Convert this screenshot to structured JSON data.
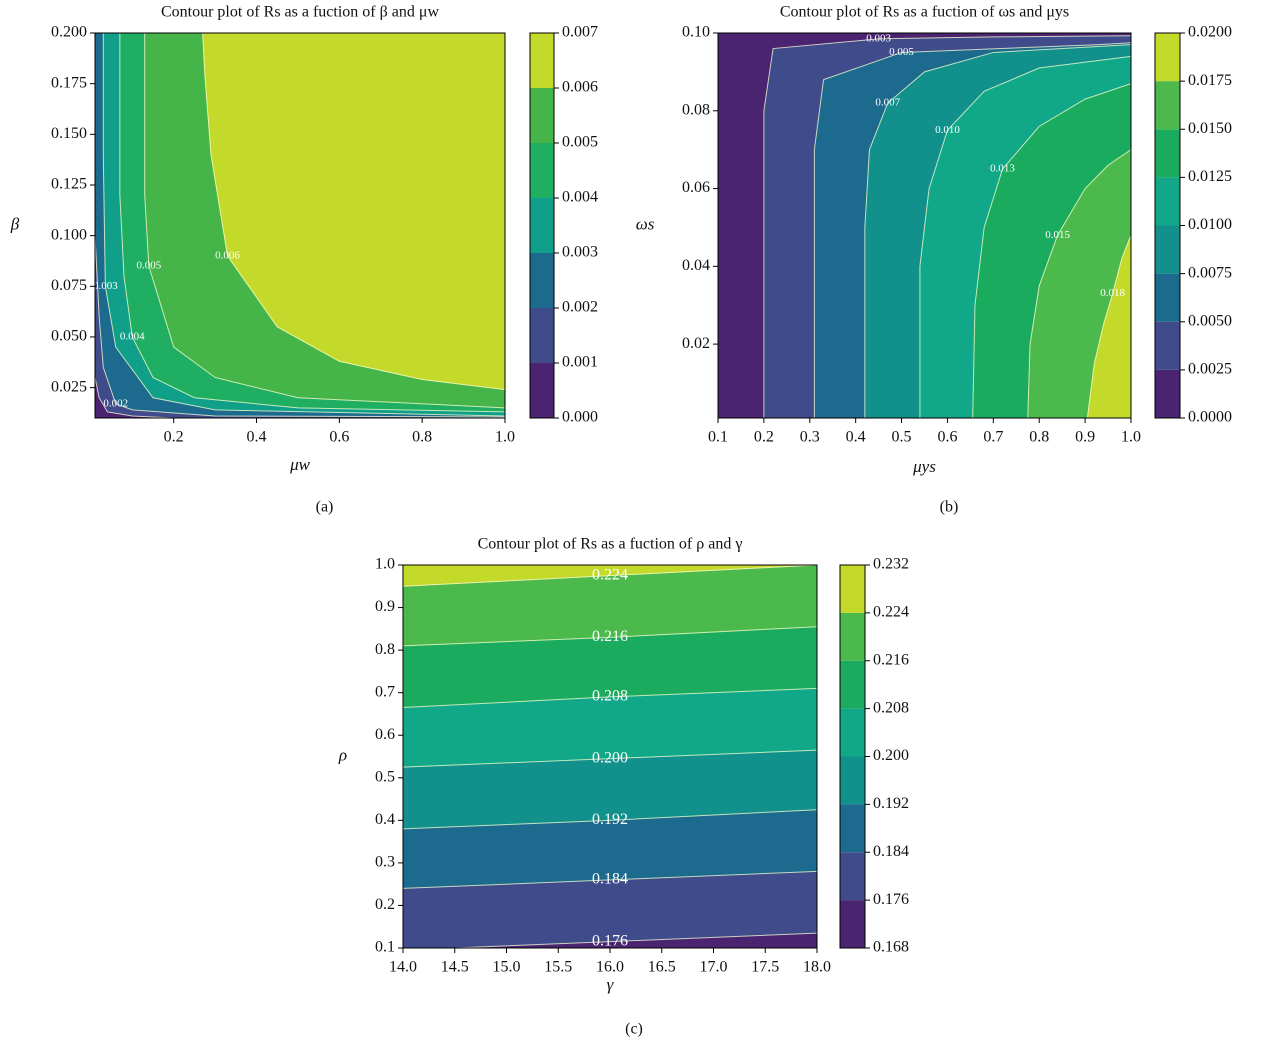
{
  "chart_data": [
    {
      "type": "contour",
      "title": "Contour plot of Rs as a fuction of β and μw",
      "xlabel": "μw",
      "ylabel": "β",
      "panel_label": "(a)",
      "xlim": [
        0.01,
        1.0
      ],
      "ylim": [
        0.01,
        0.2
      ],
      "xticks": [
        0.2,
        0.4,
        0.6,
        0.8,
        {
          "value": 1.0,
          "label": "1.0"
        }
      ],
      "yticks": [
        0.025,
        {
          "value": 0.05,
          "label": "0.050"
        },
        0.075,
        {
          "value": 0.1,
          "label": "0.100"
        },
        0.125,
        {
          "value": 0.15,
          "label": "0.150"
        },
        0.175,
        {
          "value": 0.2,
          "label": "0.200"
        }
      ],
      "levels": [
        {
          "value": 0,
          "label": "0.000"
        },
        0.001,
        0.002,
        0.003,
        0.004,
        0.005,
        0.006,
        0.007
      ],
      "colors": [
        "#4a2470",
        "#3f4b8b",
        "#1c6a8d",
        "#10a08a",
        "#1fae62",
        "#45b54a",
        "#c4da2a"
      ],
      "contours": [
        {
          "level": 0.001,
          "x": [
            0.2,
            0.1,
            0.04,
            0.02,
            0.01
          ],
          "y": [
            0.01,
            0.011,
            0.013,
            0.02,
            0.03
          ]
        },
        {
          "level": 0.002,
          "label": "0.002",
          "x": [
            1.0,
            0.3,
            0.1,
            0.06,
            0.03,
            0.02,
            0.01
          ],
          "y": [
            0.0105,
            0.011,
            0.014,
            0.017,
            0.035,
            0.06,
            0.1
          ]
        },
        {
          "level": 0.003,
          "label": "0.003",
          "x": [
            1.0,
            0.3,
            0.15,
            0.06,
            0.035,
            0.033,
            0.03,
            0.03
          ],
          "y": [
            0.011,
            0.014,
            0.02,
            0.045,
            0.075,
            0.1,
            0.14,
            0.2
          ]
        },
        {
          "level": 0.004,
          "label": "0.004",
          "x": [
            1.0,
            0.5,
            0.25,
            0.15,
            0.1,
            0.08,
            0.07,
            0.07
          ],
          "y": [
            0.013,
            0.015,
            0.02,
            0.03,
            0.05,
            0.08,
            0.12,
            0.2
          ]
        },
        {
          "level": 0.005,
          "label": "0.005",
          "x": [
            1.0,
            0.5,
            0.3,
            0.2,
            0.14,
            0.13,
            0.13,
            0.13
          ],
          "y": [
            0.015,
            0.02,
            0.03,
            0.045,
            0.085,
            0.12,
            0.16,
            0.2
          ]
        },
        {
          "level": 0.006,
          "label": "0.006",
          "x": [
            1.0,
            0.8,
            0.6,
            0.45,
            0.33,
            0.29,
            0.275,
            0.27
          ],
          "y": [
            0.024,
            0.029,
            0.038,
            0.055,
            0.09,
            0.14,
            0.18,
            0.2
          ]
        }
      ]
    },
    {
      "type": "contour",
      "title": "Contour plot of Rs as a fuction of ωs and μys",
      "xlabel": "μys",
      "ylabel": "ωs",
      "panel_label": "(b)",
      "xlim": [
        0.1,
        1.0
      ],
      "ylim": [
        0.001,
        0.1
      ],
      "xticks": [
        0.1,
        0.2,
        0.3,
        0.4,
        0.5,
        0.6,
        0.7,
        0.8,
        0.9,
        {
          "value": 1.0,
          "label": "1.0"
        }
      ],
      "yticks": [
        0.02,
        0.04,
        0.06,
        0.08,
        {
          "value": 0.1,
          "label": "0.10"
        }
      ],
      "levels": [
        {
          "value": 0,
          "label": "0.0000"
        },
        0.0025,
        {
          "value": 0.005,
          "label": "0.0050"
        },
        0.0075,
        {
          "value": 0.01,
          "label": "0.0100"
        },
        0.0125,
        {
          "value": 0.015,
          "label": "0.0150"
        },
        0.0175,
        {
          "value": 0.02,
          "label": "0.0200"
        }
      ],
      "colors": [
        "#4a2470",
        "#3f4b8b",
        "#1c6a8d",
        "#12918c",
        "#10a889",
        "#1bab5f",
        "#4cb94c",
        "#c4da2a"
      ],
      "contours": [
        {
          "level": 0.0025,
          "label": "0.003",
          "x": [
            0.2,
            0.2,
            0.22,
            0.45,
            0.7,
            1.0
          ],
          "y": [
            0.001,
            0.08,
            0.096,
            0.0985,
            0.099,
            0.0993
          ]
        },
        {
          "level": 0.005,
          "label": "0.005",
          "x": [
            0.31,
            0.31,
            0.33,
            0.5,
            0.93,
            1.0
          ],
          "y": [
            0.001,
            0.07,
            0.088,
            0.095,
            0.097,
            0.0975
          ]
        },
        {
          "level": 0.0075,
          "label": "0.007",
          "x": [
            0.42,
            0.42,
            0.43,
            0.47,
            0.55,
            0.7,
            1.0
          ],
          "y": [
            0.001,
            0.05,
            0.07,
            0.082,
            0.09,
            0.095,
            0.097
          ]
        },
        {
          "level": 0.01,
          "label": "0.010",
          "x": [
            0.54,
            0.54,
            0.56,
            0.6,
            0.68,
            0.8,
            1.0
          ],
          "y": [
            0.001,
            0.04,
            0.06,
            0.075,
            0.085,
            0.091,
            0.094
          ]
        },
        {
          "level": 0.0125,
          "label": "0.013",
          "x": [
            0.655,
            0.66,
            0.68,
            0.72,
            0.8,
            0.9,
            1.0
          ],
          "y": [
            0.001,
            0.03,
            0.05,
            0.065,
            0.076,
            0.083,
            0.087
          ]
        },
        {
          "level": 0.015,
          "label": "0.015",
          "x": [
            0.775,
            0.78,
            0.8,
            0.84,
            0.9,
            0.95,
            1.0
          ],
          "y": [
            0.001,
            0.02,
            0.035,
            0.048,
            0.06,
            0.066,
            0.07
          ]
        },
        {
          "level": 0.0175,
          "label": "0.018",
          "x": [
            0.905,
            0.92,
            0.94,
            0.96,
            0.98,
            1.0
          ],
          "y": [
            0.001,
            0.015,
            0.025,
            0.033,
            0.042,
            0.048
          ]
        }
      ]
    },
    {
      "type": "contour",
      "title": "Contour plot of Rs as a fuction of ρ and γ",
      "xlabel": "γ",
      "ylabel": "ρ",
      "panel_label": "(c)",
      "xlim": [
        14,
        18
      ],
      "ylim": [
        0.1,
        1.0
      ],
      "xticks": [
        {
          "value": 14,
          "label": "14.0"
        },
        14.5,
        {
          "value": 15,
          "label": "15.0"
        },
        15.5,
        {
          "value": 16,
          "label": "16.0"
        },
        16.5,
        {
          "value": 17,
          "label": "17.0"
        },
        17.5,
        {
          "value": 18,
          "label": "18.0"
        }
      ],
      "yticks": [
        0.1,
        0.2,
        0.3,
        0.4,
        0.5,
        0.6,
        0.7,
        0.8,
        0.9,
        {
          "value": 1.0,
          "label": "1.0"
        }
      ],
      "levels": [
        0.168,
        0.176,
        0.184,
        0.192,
        {
          "value": 0.2,
          "label": "0.200"
        },
        0.208,
        0.216,
        0.224,
        0.232
      ],
      "colors": [
        "#4a2470",
        "#3f4b8b",
        "#1c6a8d",
        "#12918c",
        "#10a889",
        "#1bab5f",
        "#4cb94c",
        "#c4da2a"
      ],
      "contours": [
        {
          "level": 0.176,
          "label": "0.176",
          "x": [
            18,
            16,
            14.5
          ],
          "y": [
            0.135,
            0.115,
            0.1
          ]
        },
        {
          "level": 0.184,
          "label": "0.184",
          "x": [
            18,
            16,
            14
          ],
          "y": [
            0.28,
            0.26,
            0.24
          ]
        },
        {
          "level": 0.192,
          "label": "0.192",
          "x": [
            18,
            16,
            14
          ],
          "y": [
            0.425,
            0.4,
            0.38
          ]
        },
        {
          "level": 0.2,
          "label": "0.200",
          "x": [
            18,
            16,
            14
          ],
          "y": [
            0.565,
            0.545,
            0.525
          ]
        },
        {
          "level": 0.208,
          "label": "0.208",
          "x": [
            18,
            16,
            14
          ],
          "y": [
            0.71,
            0.69,
            0.665
          ]
        },
        {
          "level": 0.216,
          "label": "0.216",
          "x": [
            18,
            16,
            14
          ],
          "y": [
            0.855,
            0.83,
            0.81
          ]
        },
        {
          "level": 0.224,
          "label": "0.224",
          "x": [
            18,
            16,
            14
          ],
          "y": [
            1.0,
            0.975,
            0.95
          ]
        }
      ]
    }
  ]
}
